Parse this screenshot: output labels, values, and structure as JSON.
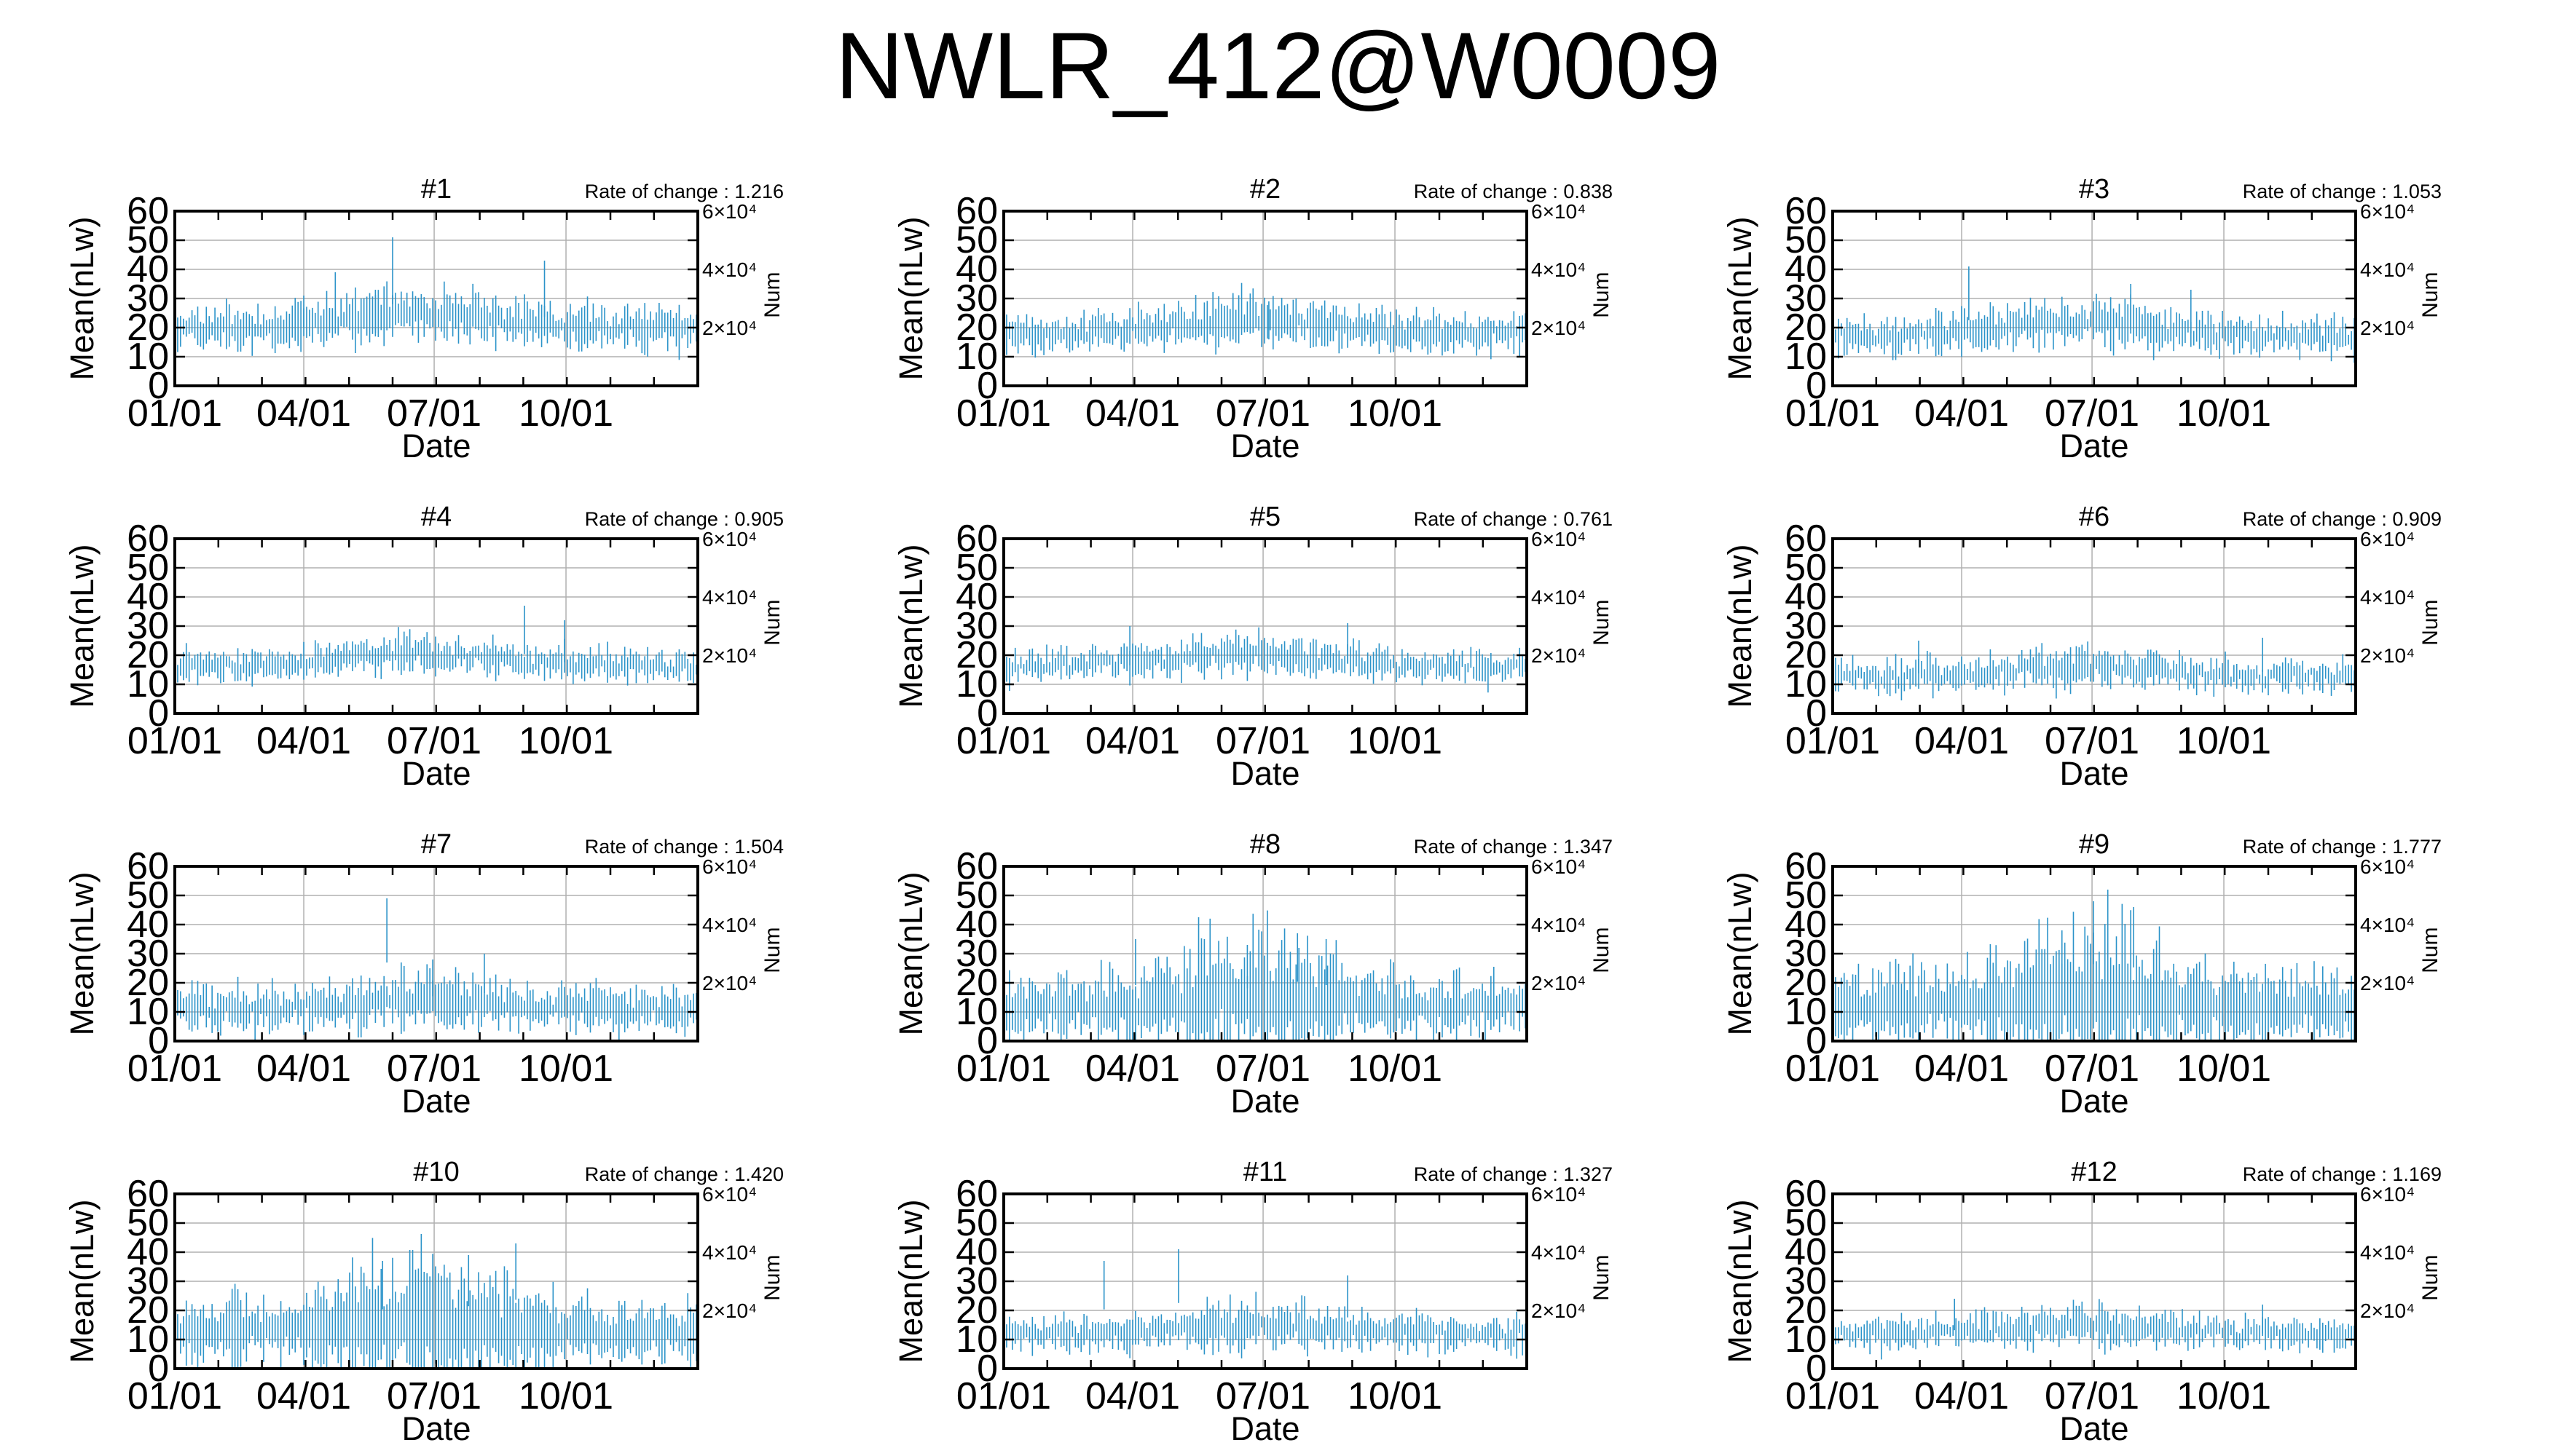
{
  "title": "NWLR_412@W0009",
  "colors": {
    "series": "#2b93c9",
    "grid": "#b0b0b0",
    "frame": "#000000"
  },
  "chart_data": [
    {
      "type": "bar",
      "title": "#1",
      "annotation": "Rate of change : 1.216",
      "mean_level": 22,
      "spread": 7,
      "xlabel": "Date",
      "ylabel": "Mean(nLw)",
      "ylabel_right": "Num",
      "yticks": [
        0,
        10,
        20,
        30,
        40,
        50,
        60
      ],
      "yticks_right": [
        "2×10⁴",
        "4×10⁴",
        "6×10⁴"
      ],
      "xticks": [
        "01/01",
        "04/01",
        "07/01",
        "10/01"
      ],
      "ylim": [
        0,
        60
      ],
      "x_range_days": [
        0,
        365
      ],
      "grid": true,
      "outliers": [
        {
          "day": 152,
          "value": 51
        },
        {
          "day": 112,
          "value": 39
        },
        {
          "day": 258,
          "value": 43
        },
        {
          "day": 140,
          "value": 33
        },
        {
          "day": 90,
          "value": 31
        }
      ]
    },
    {
      "type": "bar",
      "title": "#2",
      "annotation": "Rate of change : 0.838",
      "mean_level": 20,
      "spread": 6,
      "xlabel": "Date",
      "ylabel": "Mean(nLw)",
      "ylabel_right": "Num",
      "yticks": [
        0,
        10,
        20,
        30,
        40,
        50,
        60
      ],
      "yticks_right": [
        "2×10⁴",
        "4×10⁴",
        "6×10⁴"
      ],
      "xticks": [
        "01/01",
        "04/01",
        "07/01",
        "10/01"
      ],
      "ylim": [
        0,
        60
      ],
      "x_range_days": [
        0,
        365
      ],
      "grid": true,
      "outliers": [
        {
          "day": 160,
          "value": 31
        },
        {
          "day": 185,
          "value": 29
        }
      ]
    },
    {
      "type": "bar",
      "title": "#3",
      "annotation": "Rate of change : 1.053",
      "mean_level": 19,
      "spread": 6,
      "xlabel": "Date",
      "ylabel": "Mean(nLw)",
      "ylabel_right": "Num",
      "yticks": [
        0,
        10,
        20,
        30,
        40,
        50,
        60
      ],
      "yticks_right": [
        "2×10⁴",
        "4×10⁴",
        "6×10⁴"
      ],
      "xticks": [
        "01/01",
        "04/01",
        "07/01",
        "10/01"
      ],
      "ylim": [
        0,
        60
      ],
      "x_range_days": [
        0,
        365
      ],
      "grid": true,
      "outliers": [
        {
          "day": 95,
          "value": 41
        },
        {
          "day": 208,
          "value": 35
        },
        {
          "day": 250,
          "value": 33
        }
      ]
    },
    {
      "type": "bar",
      "title": "#4",
      "annotation": "Rate of change : 0.905",
      "mean_level": 18,
      "spread": 5,
      "xlabel": "Date",
      "ylabel": "Mean(nLw)",
      "ylabel_right": "Num",
      "yticks": [
        0,
        10,
        20,
        30,
        40,
        50,
        60
      ],
      "yticks_right": [
        "2×10⁴",
        "4×10⁴",
        "6×10⁴"
      ],
      "xticks": [
        "01/01",
        "04/01",
        "07/01",
        "10/01"
      ],
      "ylim": [
        0,
        60
      ],
      "x_range_days": [
        0,
        365
      ],
      "grid": true,
      "outliers": [
        {
          "day": 244,
          "value": 37
        },
        {
          "day": 272,
          "value": 32
        }
      ]
    },
    {
      "type": "bar",
      "title": "#5",
      "annotation": "Rate of change : 0.761",
      "mean_level": 18,
      "spread": 5,
      "xlabel": "Date",
      "ylabel": "Mean(nLw)",
      "ylabel_right": "Num",
      "yticks": [
        0,
        10,
        20,
        30,
        40,
        50,
        60
      ],
      "yticks_right": [
        "2×10⁴",
        "4×10⁴",
        "6×10⁴"
      ],
      "xticks": [
        "01/01",
        "04/01",
        "07/01",
        "10/01"
      ],
      "ylim": [
        0,
        60
      ],
      "x_range_days": [
        0,
        365
      ],
      "grid": true,
      "outliers": [
        {
          "day": 88,
          "value": 30
        },
        {
          "day": 240,
          "value": 31
        }
      ]
    },
    {
      "type": "bar",
      "title": "#6",
      "annotation": "Rate of change : 0.909",
      "mean_level": 14,
      "spread": 5,
      "xlabel": "Date",
      "ylabel": "Mean(nLw)",
      "ylabel_right": "Num",
      "yticks": [
        0,
        10,
        20,
        30,
        40,
        50,
        60
      ],
      "yticks_right": [
        "2×10⁴",
        "4×10⁴",
        "6×10⁴"
      ],
      "xticks": [
        "01/01",
        "04/01",
        "07/01",
        "10/01"
      ],
      "ylim": [
        0,
        60
      ],
      "x_range_days": [
        0,
        365
      ],
      "grid": true,
      "outliers": [
        {
          "day": 300,
          "value": 26
        },
        {
          "day": 60,
          "value": 25
        }
      ]
    },
    {
      "type": "bar",
      "title": "#7",
      "annotation": "Rate of change : 1.504",
      "mean_level": 12,
      "spread": 7,
      "xlabel": "Date",
      "ylabel": "Mean(nLw)",
      "ylabel_right": "Num",
      "yticks": [
        0,
        10,
        20,
        30,
        40,
        50,
        60
      ],
      "yticks_right": [
        "2×10⁴",
        "4×10⁴",
        "6×10⁴"
      ],
      "xticks": [
        "01/01",
        "04/01",
        "07/01",
        "10/01"
      ],
      "ylim": [
        0,
        60
      ],
      "x_range_days": [
        0,
        365
      ],
      "grid": true,
      "outliers": [
        {
          "day": 148,
          "value": 49
        },
        {
          "day": 216,
          "value": 30
        },
        {
          "day": 180,
          "value": 28
        }
      ]
    },
    {
      "type": "bar",
      "title": "#8",
      "annotation": "Rate of change : 1.347",
      "mean_level": 13,
      "spread": 10,
      "xlabel": "Date",
      "ylabel": "Mean(nLw)",
      "ylabel_right": "Num",
      "yticks": [
        0,
        10,
        20,
        30,
        40,
        50,
        60
      ],
      "yticks_right": [
        "2×10⁴",
        "4×10⁴",
        "6×10⁴"
      ],
      "xticks": [
        "01/01",
        "04/01",
        "07/01",
        "10/01"
      ],
      "ylim": [
        0,
        60
      ],
      "x_range_days": [
        0,
        365
      ],
      "grid": true,
      "outliers": [
        {
          "day": 92,
          "value": 35
        },
        {
          "day": 205,
          "value": 37
        },
        {
          "day": 225,
          "value": 35
        },
        {
          "day": 170,
          "value": 33
        }
      ]
    },
    {
      "type": "bar",
      "title": "#9",
      "annotation": "Rate of change : 1.777",
      "mean_level": 13,
      "spread": 12,
      "xlabel": "Date",
      "ylabel": "Mean(nLw)",
      "ylabel_right": "Num",
      "yticks": [
        0,
        10,
        20,
        30,
        40,
        50,
        60
      ],
      "yticks_right": [
        "2×10⁴",
        "4×10⁴",
        "6×10⁴"
      ],
      "xticks": [
        "01/01",
        "04/01",
        "07/01",
        "10/01"
      ],
      "ylim": [
        0,
        60
      ],
      "x_range_days": [
        0,
        365
      ],
      "grid": true,
      "outliers": [
        {
          "day": 192,
          "value": 52
        },
        {
          "day": 182,
          "value": 48
        },
        {
          "day": 210,
          "value": 46
        },
        {
          "day": 160,
          "value": 38
        }
      ]
    },
    {
      "type": "bar",
      "title": "#10",
      "annotation": "Rate of change : 1.420",
      "mean_level": 14,
      "spread": 10,
      "xlabel": "Date",
      "ylabel": "Mean(nLw)",
      "ylabel_right": "Num",
      "yticks": [
        0,
        10,
        20,
        30,
        40,
        50,
        60
      ],
      "yticks_right": [
        "2×10⁴",
        "4×10⁴",
        "6×10⁴"
      ],
      "xticks": [
        "01/01",
        "04/01",
        "07/01",
        "10/01"
      ],
      "ylim": [
        0,
        60
      ],
      "x_range_days": [
        0,
        365
      ],
      "grid": true,
      "outliers": [
        {
          "day": 238,
          "value": 43
        },
        {
          "day": 205,
          "value": 39
        },
        {
          "day": 145,
          "value": 37
        }
      ]
    },
    {
      "type": "bar",
      "title": "#11",
      "annotation": "Rate of change : 1.327",
      "mean_level": 13,
      "spread": 6,
      "xlabel": "Date",
      "ylabel": "Mean(nLw)",
      "ylabel_right": "Num",
      "yticks": [
        0,
        10,
        20,
        30,
        40,
        50,
        60
      ],
      "yticks_right": [
        "2×10⁴",
        "4×10⁴",
        "6×10⁴"
      ],
      "xticks": [
        "01/01",
        "04/01",
        "07/01",
        "10/01"
      ],
      "ylim": [
        0,
        60
      ],
      "x_range_days": [
        0,
        365
      ],
      "grid": true,
      "outliers": [
        {
          "day": 70,
          "value": 37
        },
        {
          "day": 122,
          "value": 41
        },
        {
          "day": 240,
          "value": 32
        }
      ]
    },
    {
      "type": "bar",
      "title": "#12",
      "annotation": "Rate of change : 1.169",
      "mean_level": 13,
      "spread": 5,
      "xlabel": "Date",
      "ylabel": "Mean(nLw)",
      "ylabel_right": "Num",
      "yticks": [
        0,
        10,
        20,
        30,
        40,
        50,
        60
      ],
      "yticks_right": [
        "2×10⁴",
        "4×10⁴",
        "6×10⁴"
      ],
      "xticks": [
        "01/01",
        "04/01",
        "07/01",
        "10/01"
      ],
      "ylim": [
        0,
        60
      ],
      "x_range_days": [
        0,
        365
      ],
      "grid": true,
      "outliers": [
        {
          "day": 85,
          "value": 24
        },
        {
          "day": 300,
          "value": 22
        }
      ]
    }
  ]
}
